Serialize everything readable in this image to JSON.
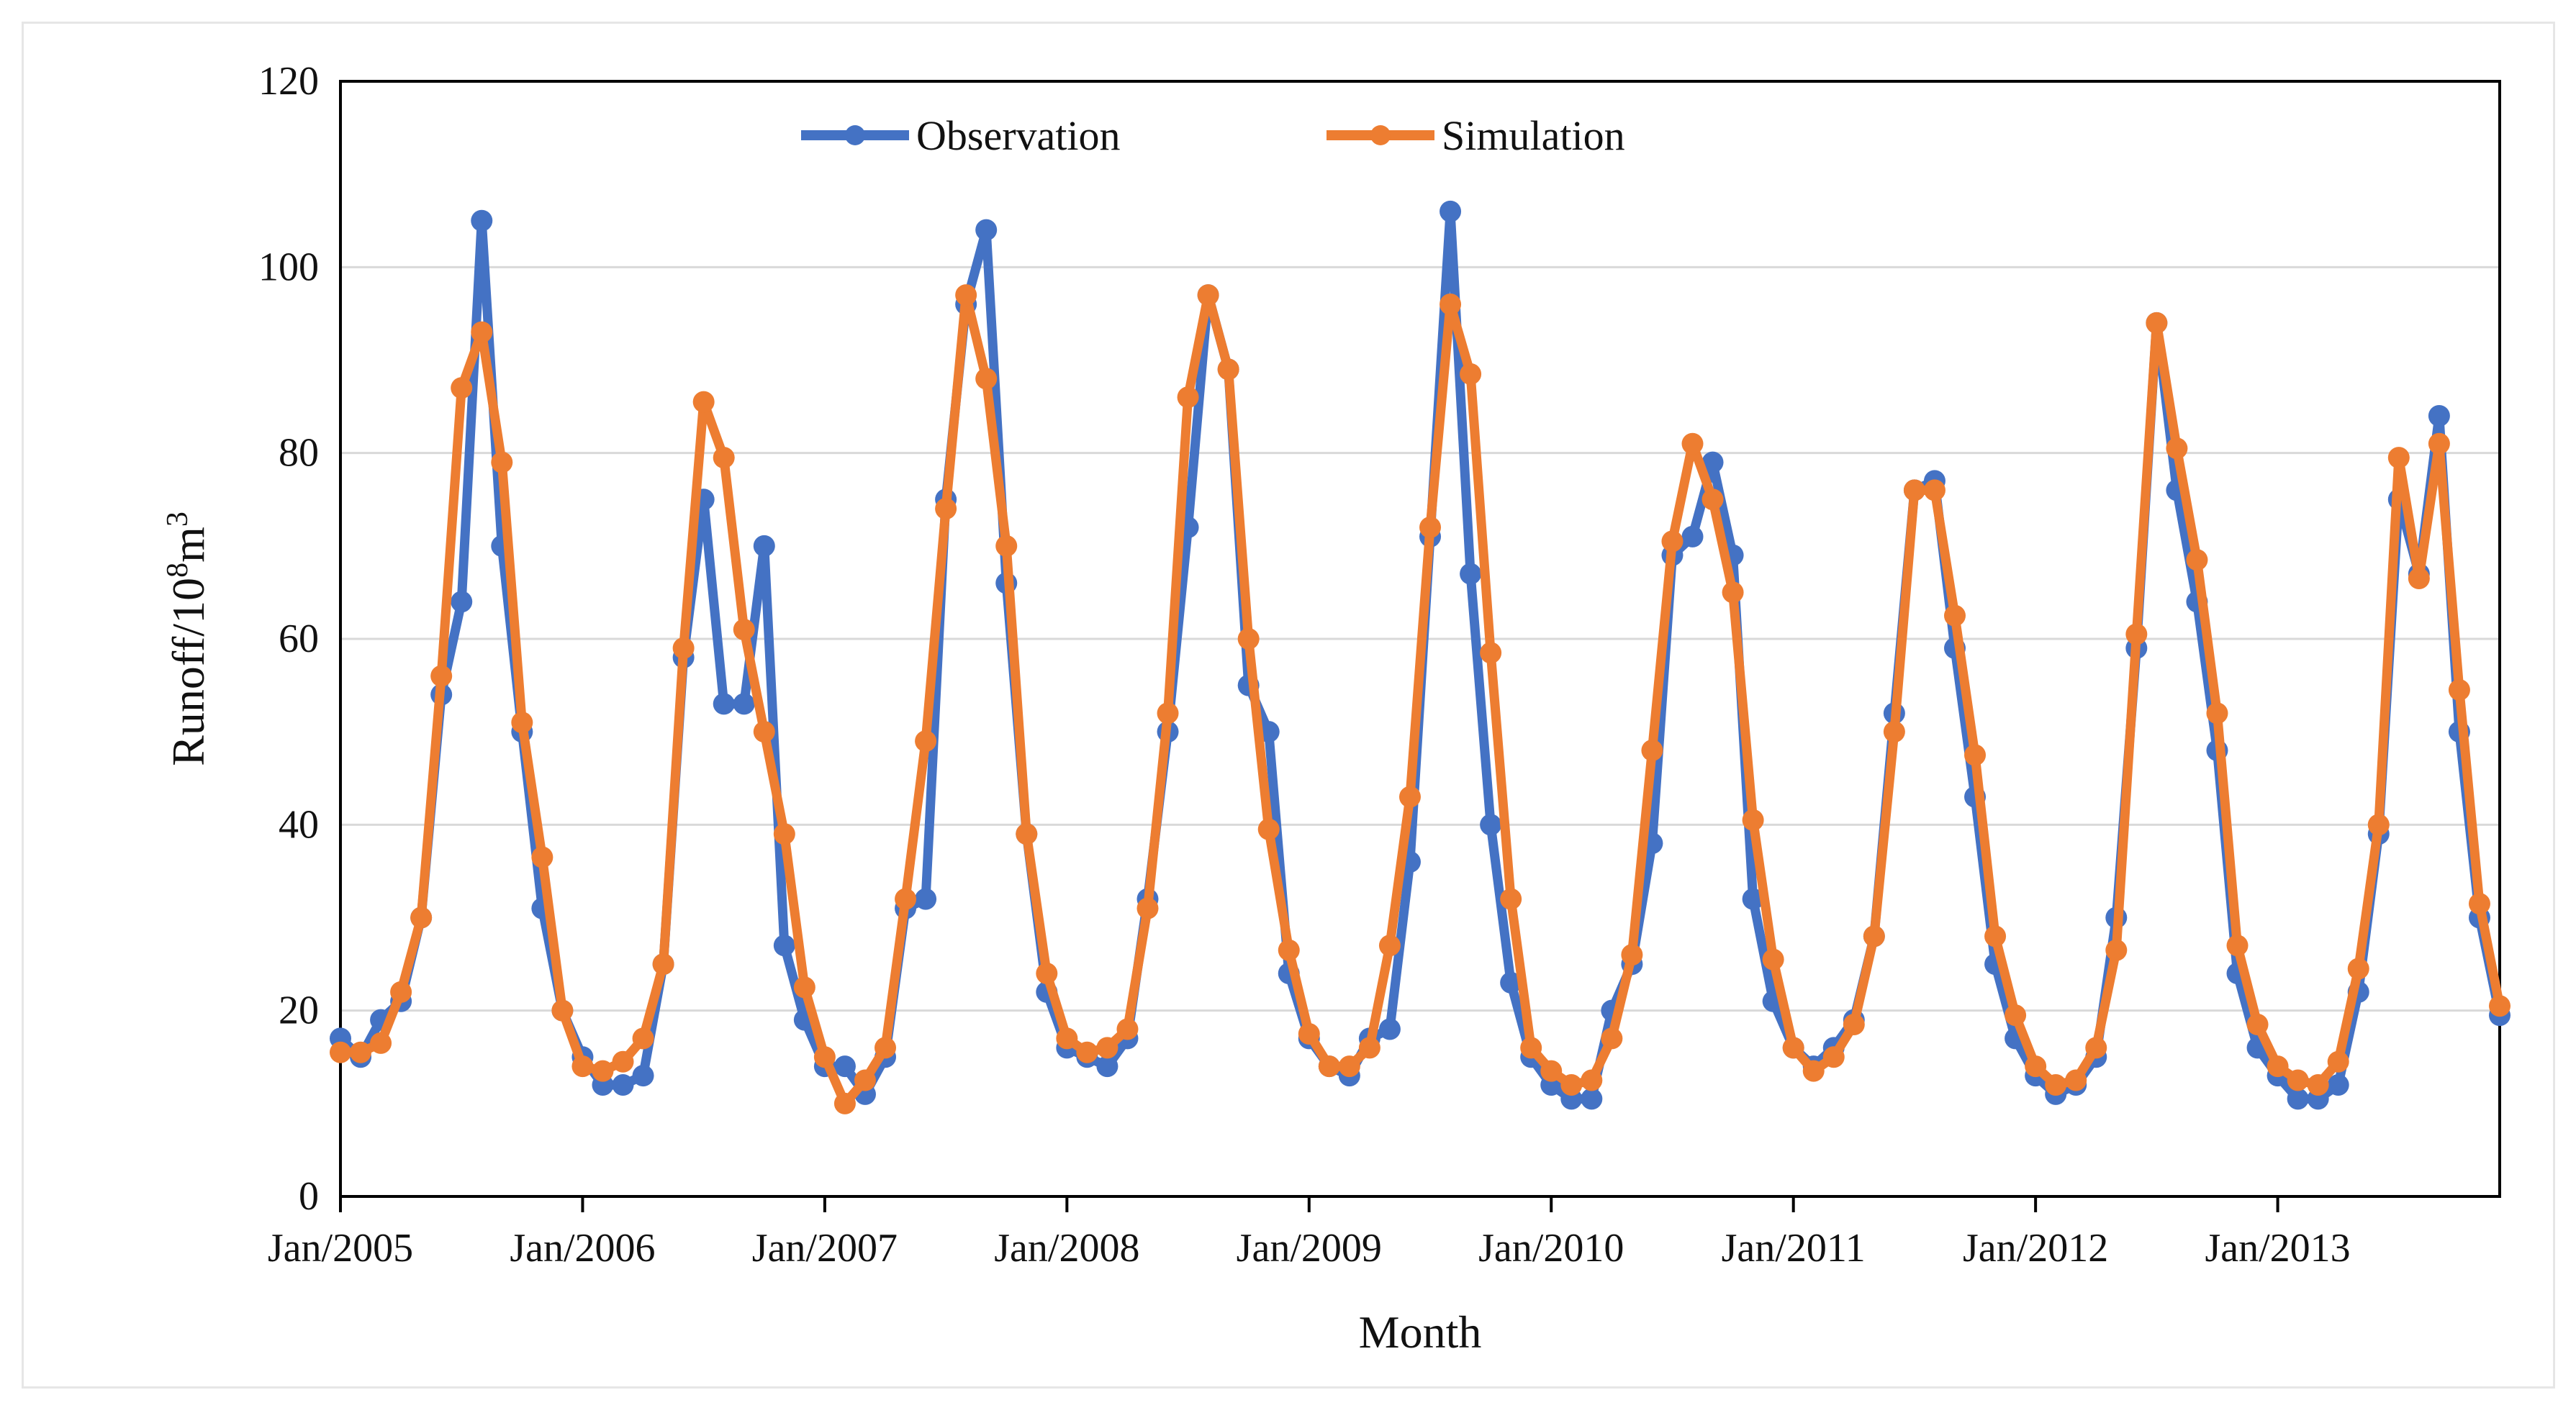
{
  "chart_data": {
    "type": "line",
    "xlabel": "Month",
    "ylabel_main": "Runoff/10",
    "ylabel_sup": "8",
    "ylabel_end": "m",
    "ylabel_sup2": "3",
    "ylim": [
      0,
      120
    ],
    "yticks": [
      "0",
      "20",
      "40",
      "60",
      "80",
      "100",
      "120"
    ],
    "xtick_labels": [
      "Jan/2005",
      "Jan/2006",
      "Jan/2007",
      "Jan/2008",
      "Jan/2009",
      "Jan/2010",
      "Jan/2011",
      "Jan/2012",
      "Jan/2013"
    ],
    "x_start": "Jan/2005",
    "x_end": "Dec/2013",
    "grid": "horizontal",
    "legend_position": "top-center",
    "series": [
      {
        "name": "Observation",
        "color": "#4472C4",
        "values": [
          17,
          15,
          19,
          21,
          30,
          54,
          64,
          105,
          70,
          50,
          31,
          20,
          15,
          12,
          12,
          13,
          25,
          58,
          75,
          53,
          53,
          70,
          27,
          19,
          14,
          14,
          11,
          15,
          31,
          32,
          75,
          96,
          104,
          66,
          39,
          22,
          16,
          15,
          14,
          17,
          32,
          50,
          72,
          97,
          89,
          55,
          50,
          24,
          17,
          14,
          13,
          17,
          18,
          36,
          71,
          106,
          67,
          40,
          23,
          15,
          12,
          10.5,
          10.5,
          20,
          25,
          38,
          69,
          71,
          79,
          69,
          32,
          21,
          16,
          14,
          16,
          19,
          28,
          52,
          76,
          77,
          59,
          43,
          25,
          17,
          13,
          11,
          12,
          15,
          30,
          59,
          94,
          76,
          64,
          48,
          24,
          16,
          13,
          10.5,
          10.5,
          12,
          22,
          39,
          75,
          67,
          84,
          50,
          30,
          19.5
        ]
      },
      {
        "name": "Simulation",
        "color": "#ED7D31",
        "values": [
          15.5,
          15.5,
          16.5,
          22,
          30,
          56,
          87,
          93,
          79,
          51,
          36.5,
          20,
          14,
          13.5,
          14.5,
          17,
          25,
          59,
          85.5,
          79.5,
          61,
          50,
          39,
          22.5,
          15,
          10,
          12.5,
          16,
          32,
          49,
          74,
          97,
          88,
          70,
          39,
          24,
          17,
          15.5,
          16,
          18,
          31,
          52,
          86,
          97,
          89,
          60,
          39.5,
          26.5,
          17.5,
          14,
          14,
          16,
          27,
          43,
          72,
          96,
          88.5,
          58.5,
          32,
          16,
          13.5,
          12,
          12.5,
          17,
          26,
          48,
          70.5,
          81,
          75,
          65,
          40.5,
          25.5,
          16,
          13.5,
          15,
          18.5,
          28,
          50,
          76,
          76,
          62.5,
          47.5,
          28,
          19.5,
          14,
          12,
          12.5,
          16,
          26.5,
          60.5,
          94,
          80.5,
          68.5,
          52,
          27,
          18.5,
          14,
          12.5,
          12,
          14.5,
          24.5,
          40,
          79.5,
          66.5,
          81,
          54.5,
          31.5,
          20.5
        ]
      }
    ]
  }
}
